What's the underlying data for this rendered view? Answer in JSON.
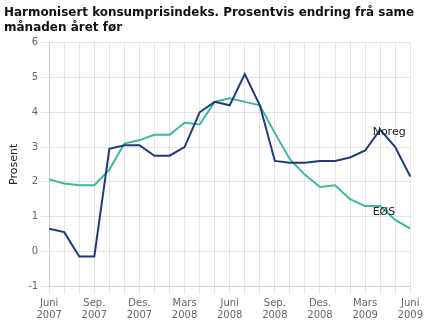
{
  "chart_data": {
    "type": "line",
    "title": "Harmonisert konsumprisindeks. Prosentvis endring frå same\nmånaden året før",
    "y_label": "Prosent",
    "categories": [
      "Juni\n2007",
      null,
      null,
      "Sep.\n2007",
      null,
      null,
      "Des.\n2007",
      null,
      null,
      "Mars\n2008",
      null,
      null,
      "Juni\n2008",
      null,
      null,
      "Sep.\n2008",
      null,
      null,
      "Des.\n2008",
      null,
      null,
      "Mars\n2009",
      null,
      null,
      "Juni\n2009"
    ],
    "series": [
      {
        "name": "Noreg",
        "color": "#1f3a7a",
        "values": [
          0.65,
          0.55,
          -0.15,
          -0.15,
          2.95,
          3.05,
          3.05,
          2.75,
          2.75,
          3.0,
          4.0,
          4.3,
          4.2,
          5.1,
          4.2,
          2.6,
          2.55,
          2.55,
          2.6,
          2.6,
          2.7,
          2.9,
          3.5,
          3.0,
          2.15
        ]
      },
      {
        "name": "EØS",
        "color": "#3ab8a0",
        "values": [
          2.07,
          1.95,
          1.9,
          1.9,
          2.35,
          3.1,
          3.2,
          3.35,
          3.35,
          3.7,
          3.65,
          4.3,
          4.4,
          4.3,
          4.2,
          3.4,
          2.65,
          2.2,
          1.85,
          1.9,
          1.5,
          1.3,
          1.3,
          0.9,
          0.65
        ]
      }
    ],
    "annotations": [
      {
        "text": "Noreg",
        "x": 21.5,
        "y": 3.35
      },
      {
        "text": "EØS",
        "x": 21.5,
        "y": 1.05
      }
    ],
    "ylim": [
      -1,
      6
    ],
    "yticks": [
      -1,
      0,
      1,
      2,
      3,
      4,
      5,
      6
    ],
    "grid": true
  }
}
